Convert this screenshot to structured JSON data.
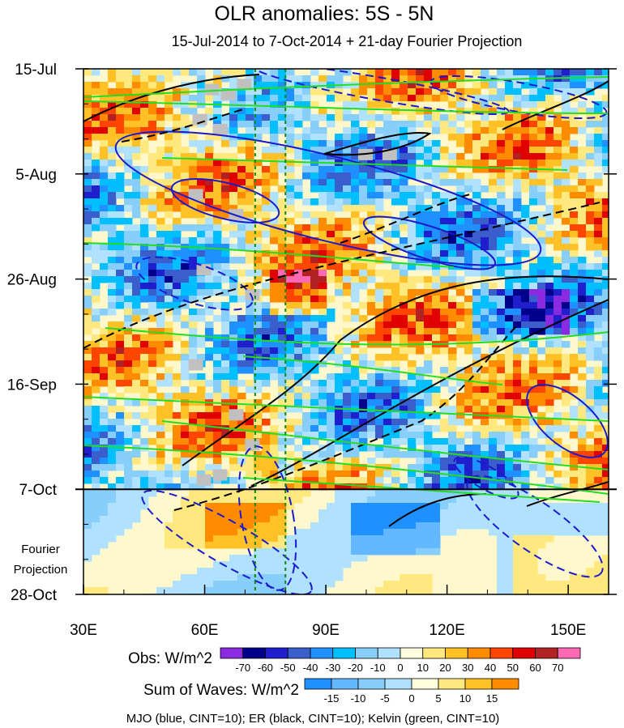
{
  "chart_data": {
    "type": "heatmap",
    "title": "OLR anomalies: 5S - 5N",
    "subtitle": "15-Jul-2014 to 7-Oct-2014 + 21-day Fourier Projection",
    "xlim": [
      30,
      160
    ],
    "ylim_days": [
      0,
      105
    ],
    "x_ticks": [
      {
        "label": "30E",
        "lon": 30
      },
      {
        "label": "60E",
        "lon": 60
      },
      {
        "label": "90E",
        "lon": 90
      },
      {
        "label": "120E",
        "lon": 120
      },
      {
        "label": "150E",
        "lon": 150
      }
    ],
    "y_ticks": [
      {
        "label": "15-Jul",
        "day": 0
      },
      {
        "label": "5-Aug",
        "day": 21
      },
      {
        "label": "26-Aug",
        "day": 42
      },
      {
        "label": "16-Sep",
        "day": 63
      },
      {
        "label": "7-Oct",
        "day": 84
      },
      {
        "label": "28-Oct",
        "day": 105
      }
    ],
    "projection_start_day": 84,
    "projection_label_line1": "Fourier",
    "projection_label_line2": "Projection",
    "reference_longitudes": [
      72.5,
      80
    ],
    "obs_colorbar": {
      "label": "Obs: W/m^2",
      "ticks": [
        "-70",
        "-60",
        "-50",
        "-40",
        "-30",
        "-20",
        "-10",
        "0",
        "10",
        "20",
        "30",
        "40",
        "50",
        "60",
        "70"
      ],
      "colors": [
        "#8a2be2",
        "#00008b",
        "#1f1fcd",
        "#3a5fcd",
        "#1e90ff",
        "#00bfff",
        "#87cefa",
        "#b0e2ff",
        "#ffffe0",
        "#ffe97f",
        "#ffc125",
        "#ff8c00",
        "#ff4500",
        "#e00000",
        "#b22222",
        "#ff69b4"
      ]
    },
    "waves_colorbar": {
      "label": "Sum of Waves: W/m^2",
      "ticks": [
        "-15",
        "-10",
        "-5",
        "0",
        "5",
        "10",
        "15"
      ],
      "colors": [
        "#1e90ff",
        "#63b8ff",
        "#87cefa",
        "#b0e2ff",
        "#ffffe0",
        "#ffe97f",
        "#ffc125",
        "#ff8c00"
      ]
    },
    "footer": "MJO (blue, CINT=10); ER (black, CINT=10); Kelvin (green, CINT=10)",
    "series": [
      {
        "name": "MJO",
        "color": "#1a1acd"
      },
      {
        "name": "ER",
        "color": "#000000"
      },
      {
        "name": "Kelvin",
        "color": "#22dd22"
      }
    ]
  }
}
